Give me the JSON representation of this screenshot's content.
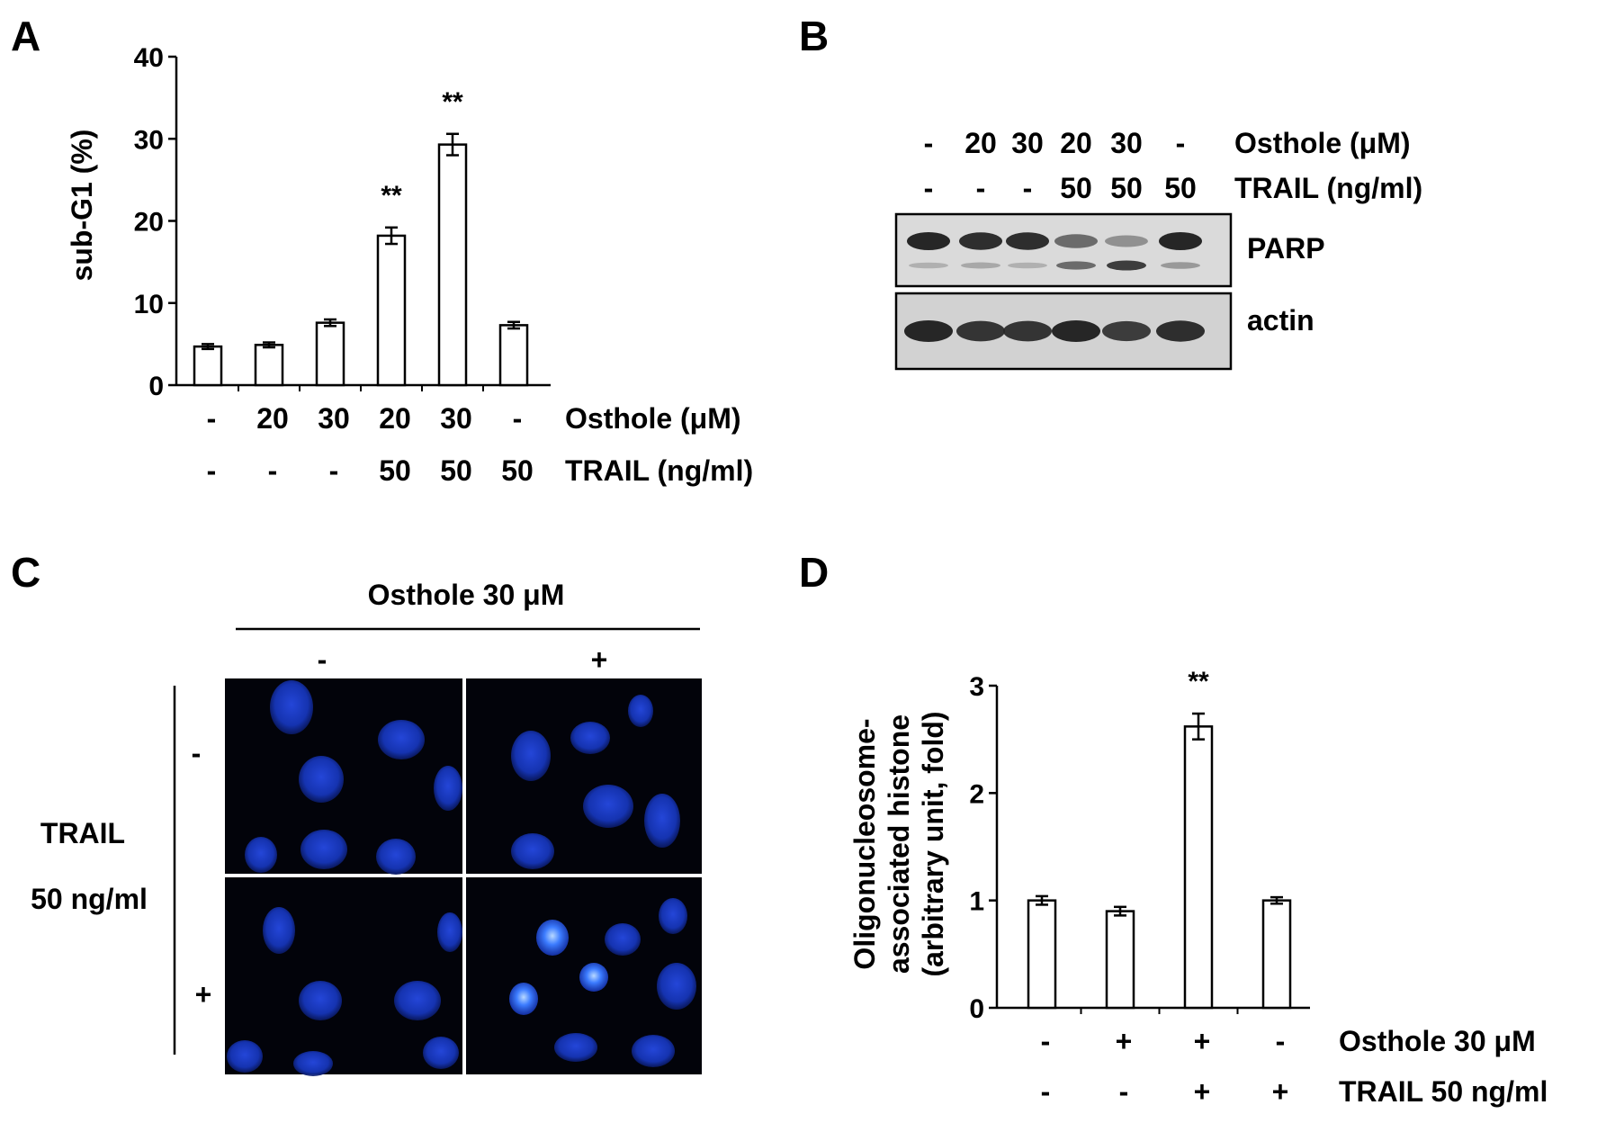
{
  "colors": {
    "ink": "#000000",
    "bar_fill": "#ffffff",
    "nucleus": "#1a3cc8",
    "micrograph_bg": "#02030a",
    "blot_bg": "#d9d9d9",
    "band": "#3a3a3a"
  },
  "panels": {
    "A": {
      "letter": "A",
      "row_labels": [
        "Osthole (μM)",
        "TRAIL (ng/ml)"
      ],
      "conditions": [
        {
          "osthole": "-",
          "trail": "-"
        },
        {
          "osthole": "20",
          "trail": "-"
        },
        {
          "osthole": "30",
          "trail": "-"
        },
        {
          "osthole": "20",
          "trail": "50"
        },
        {
          "osthole": "30",
          "trail": "50"
        },
        {
          "osthole": "-",
          "trail": "50"
        }
      ]
    },
    "B": {
      "letter": "B",
      "row_labels": [
        "Osthole (μM)",
        "TRAIL (ng/ml)"
      ],
      "conditions": [
        {
          "osthole": "-",
          "trail": "-"
        },
        {
          "osthole": "20",
          "trail": "-"
        },
        {
          "osthole": "30",
          "trail": "-"
        },
        {
          "osthole": "20",
          "trail": "50"
        },
        {
          "osthole": "30",
          "trail": "50"
        },
        {
          "osthole": "-",
          "trail": "50"
        }
      ],
      "blots": [
        {
          "label": "PARP",
          "upper_band": [
            1.0,
            0.95,
            0.95,
            0.55,
            0.3,
            1.0
          ],
          "lower_band": [
            0.1,
            0.15,
            0.1,
            0.55,
            0.85,
            0.25
          ]
        },
        {
          "label": "actin",
          "band": [
            1.0,
            0.9,
            0.9,
            1.0,
            0.85,
            0.95
          ]
        }
      ]
    },
    "C": {
      "letter": "C",
      "col_header": "Osthole 30 μM",
      "col_signs": [
        "-",
        "+"
      ],
      "row_title_1": "TRAIL",
      "row_title_2": "50 ng/ml",
      "row_signs": [
        "-",
        "+"
      ]
    },
    "D": {
      "letter": "D",
      "row_labels": [
        "Osthole 30 μM",
        "TRAIL 50 ng/ml"
      ],
      "conditions": [
        {
          "osthole": "-",
          "trail": "-"
        },
        {
          "osthole": "+",
          "trail": "-"
        },
        {
          "osthole": "+",
          "trail": "+"
        },
        {
          "osthole": "-",
          "trail": "+"
        }
      ]
    }
  },
  "chart_data": [
    {
      "panel": "A",
      "type": "bar",
      "ylabel": "sub-G1 (%)",
      "ylim": [
        0,
        40
      ],
      "yticks": [
        0,
        10,
        20,
        30,
        40
      ],
      "values": [
        4.7,
        4.9,
        7.6,
        18.2,
        29.3,
        7.3
      ],
      "errors": [
        0.3,
        0.3,
        0.4,
        1.0,
        1.3,
        0.4
      ],
      "annotations": [
        "",
        "",
        "",
        "**",
        "**",
        ""
      ]
    },
    {
      "panel": "D",
      "type": "bar",
      "ylabel_lines": [
        "Oligonucleosome-",
        "associated histone",
        "(arbitrary unit, fold)"
      ],
      "ylim": [
        0,
        3
      ],
      "yticks": [
        0,
        1,
        2,
        3
      ],
      "values": [
        1.0,
        0.9,
        2.62,
        1.0
      ],
      "errors": [
        0.04,
        0.04,
        0.12,
        0.03
      ],
      "annotations": [
        "",
        "",
        "**",
        ""
      ]
    }
  ]
}
